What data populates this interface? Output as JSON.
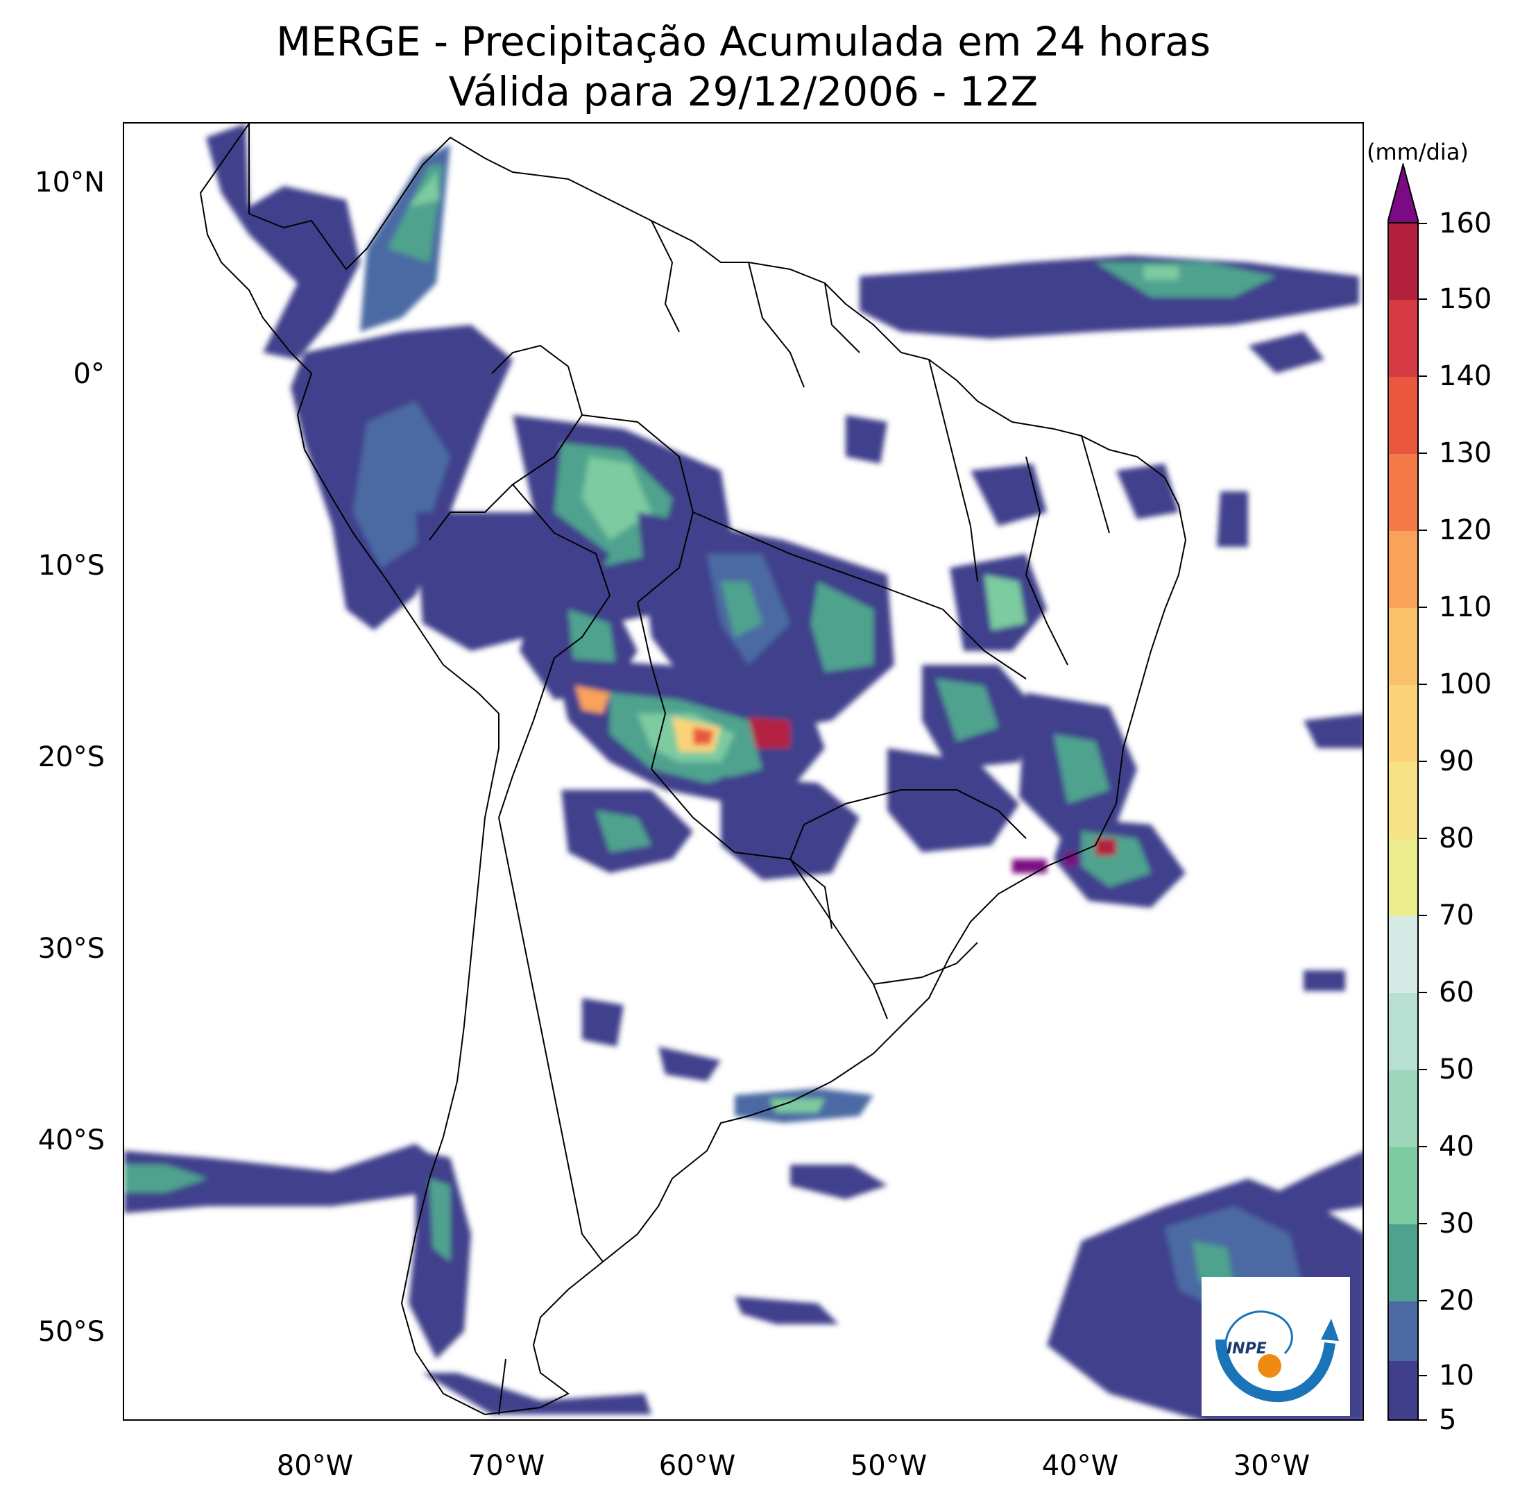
{
  "title": {
    "line1": "MERGE - Precipitação Acumulada em 24 horas",
    "line2": "Válida para 29/12/2006 - 12Z"
  },
  "map": {
    "lat_labels": [
      "10°N",
      "0°",
      "10°S",
      "20°S",
      "30°S",
      "40°S",
      "50°S"
    ],
    "lon_labels": [
      "80°W",
      "70°W",
      "60°W",
      "50°W",
      "40°W",
      "30°W"
    ],
    "colors": {
      "land_outline": "#000000",
      "rain_5_10": "#3f3f8c",
      "rain_20": "#4b6aa3",
      "rain_30": "#4fa38e",
      "rain_45": "#7dcba0",
      "rain_60": "#d7ebe6",
      "rain_80": "#f2e991",
      "rain_100": "#fbd47a",
      "rain_120": "#f9a25a",
      "rain_140": "#e8573e",
      "rain_160": "#b3213f",
      "over_160": "#7a0b82"
    }
  },
  "colorbar": {
    "unit": "(mm/dia)",
    "ticks": [
      "5",
      "10",
      "20",
      "30",
      "40",
      "50",
      "60",
      "70",
      "80",
      "90",
      "100",
      "110",
      "120",
      "130",
      "140",
      "150",
      "160"
    ],
    "extend": "max"
  },
  "logo": {
    "text": "INPE"
  }
}
